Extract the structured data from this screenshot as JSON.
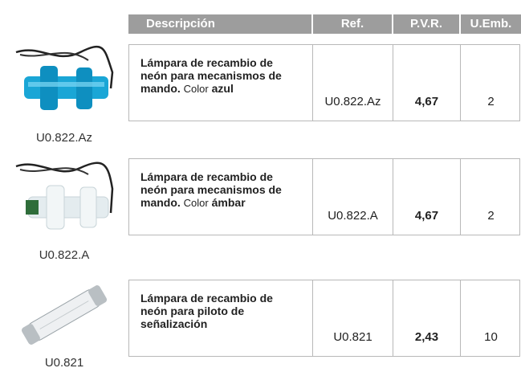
{
  "header": {
    "description": "Descripción",
    "ref": "Ref.",
    "pvr": "P.V.R.",
    "uemb": "U.Emb."
  },
  "rows": [
    {
      "code": "U0.822.Az",
      "description": "Lámpara de recambio de neón para mecanismos de mando.",
      "color_label": "Color",
      "color": "azul",
      "ref": "U0.822.Az",
      "pvr": "4,67",
      "uemb": "2"
    },
    {
      "code": "U0.822.A",
      "description": "Lámpara de recambio de neón para mecanismos de mando.",
      "color_label": "Color",
      "color": "ámbar",
      "ref": "U0.822.A",
      "pvr": "4,67",
      "uemb": "2"
    },
    {
      "code": "U0.821",
      "description": "Lámpara de recambio de neón para piloto de señalización",
      "ref": "U0.821",
      "pvr": "2,43",
      "uemb": "10"
    }
  ]
}
